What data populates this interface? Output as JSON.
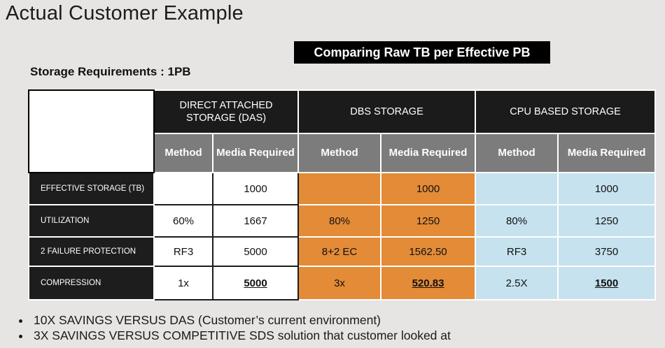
{
  "title": "Actual Customer Example",
  "subtitle": "Comparing Raw TB per Effective PB",
  "requirement": "Storage Requirements : 1PB",
  "table": {
    "groups": [
      {
        "label": "DIRECT ATTACHED STORAGE (DAS)"
      },
      {
        "label": "DBS STORAGE"
      },
      {
        "label": "CPU BASED STORAGE"
      }
    ],
    "subheaders": [
      "Method",
      "Media Required",
      "Method",
      "Media Required",
      "Method",
      "Media Required"
    ],
    "rows": [
      {
        "label": "EFFECTIVE STORAGE  (TB)",
        "cells": [
          "",
          "1000",
          "",
          "1000",
          "",
          "1000"
        ]
      },
      {
        "label": "UTILIZATION",
        "cells": [
          "60%",
          "1667",
          "80%",
          "1250",
          "80%",
          "1250"
        ]
      },
      {
        "label": "2 FAILURE PROTECTION",
        "cells": [
          "RF3",
          "5000",
          "8+2 EC",
          "1562.50",
          "RF3",
          "3750"
        ]
      },
      {
        "label": "COMPRESSION",
        "cells": [
          "1x",
          "5000",
          "3x",
          "520.83",
          "2.5X",
          "1500"
        ]
      }
    ],
    "colors": {
      "das": "#ffffff",
      "dbs": "#e38b36",
      "cpu": "#c6e2ee",
      "header": "#1b1b1b",
      "subheader": "#7c7c7c"
    }
  },
  "bullets": [
    "10X SAVINGS VERSUS DAS (Customer’s current environment)",
    "3X SAVINGS VERSUS COMPETITIVE SDS solution that customer looked at"
  ]
}
